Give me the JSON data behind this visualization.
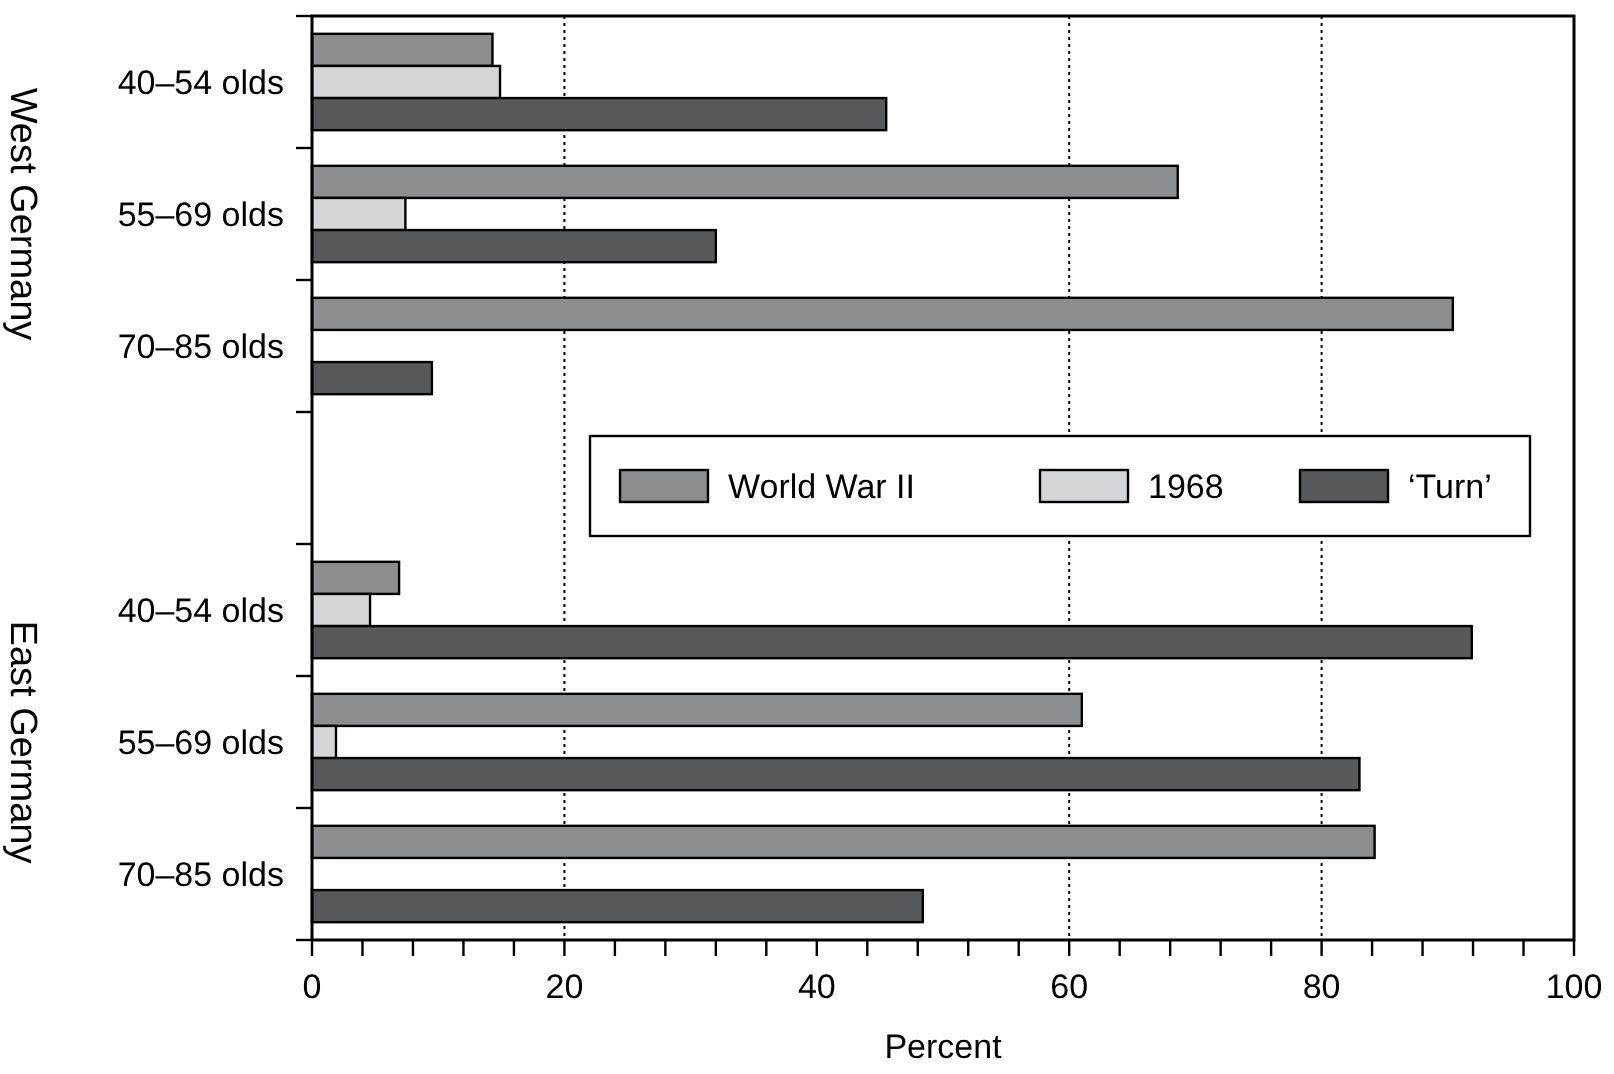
{
  "chart_data": {
    "type": "bar",
    "orientation": "horizontal",
    "xlabel": "Percent",
    "categories": [
      "40–54 olds",
      "55–69 olds",
      "70–85 olds",
      null,
      "40–54 olds",
      "55–69 olds",
      "70–85 olds"
    ],
    "series": [
      {
        "name": "World War II",
        "color": "#8c8d8e",
        "values": [
          14.3,
          68.6,
          90.4,
          null,
          6.9,
          61.0,
          84.2
        ]
      },
      {
        "name": "1968",
        "color": "#d4d5d6",
        "values": [
          14.9,
          7.4,
          null,
          null,
          4.6,
          1.9,
          null
        ]
      },
      {
        "name": "‘Turn’",
        "color": "#58595b",
        "values": [
          45.5,
          32.0,
          9.5,
          null,
          91.9,
          83.0,
          48.4
        ]
      }
    ],
    "xlim": [
      0,
      100
    ],
    "xticks": [
      0,
      {
        "value": 4,
        "label": null
      },
      {
        "value": 8,
        "label": null
      },
      {
        "value": 12,
        "label": null
      },
      {
        "value": 16,
        "label": null
      },
      20,
      {
        "value": 24,
        "label": null
      },
      {
        "value": 28,
        "label": null
      },
      {
        "value": 32,
        "label": null
      },
      {
        "value": 36,
        "label": null
      },
      40,
      {
        "value": 44,
        "label": null
      },
      {
        "value": 48,
        "label": null
      },
      {
        "value": 52,
        "label": null
      },
      {
        "value": 56,
        "label": null
      },
      60,
      {
        "value": 64,
        "label": null
      },
      {
        "value": 68,
        "label": null
      },
      {
        "value": 72,
        "label": null
      },
      {
        "value": 76,
        "label": null
      },
      80,
      {
        "value": 84,
        "label": null
      },
      {
        "value": 88,
        "label": null
      },
      {
        "value": 92,
        "label": null
      },
      {
        "value": 96,
        "label": null
      },
      100
    ],
    "ref_lines": [
      {
        "axis": "x",
        "value": 20,
        "line_style": "dotted"
      },
      {
        "axis": "x",
        "value": 60,
        "line_style": "dotted"
      },
      {
        "axis": "x",
        "value": 80,
        "line_style": "dotted"
      }
    ],
    "annotations": [
      "West Germany",
      "East Germany"
    ],
    "legend": "right"
  }
}
